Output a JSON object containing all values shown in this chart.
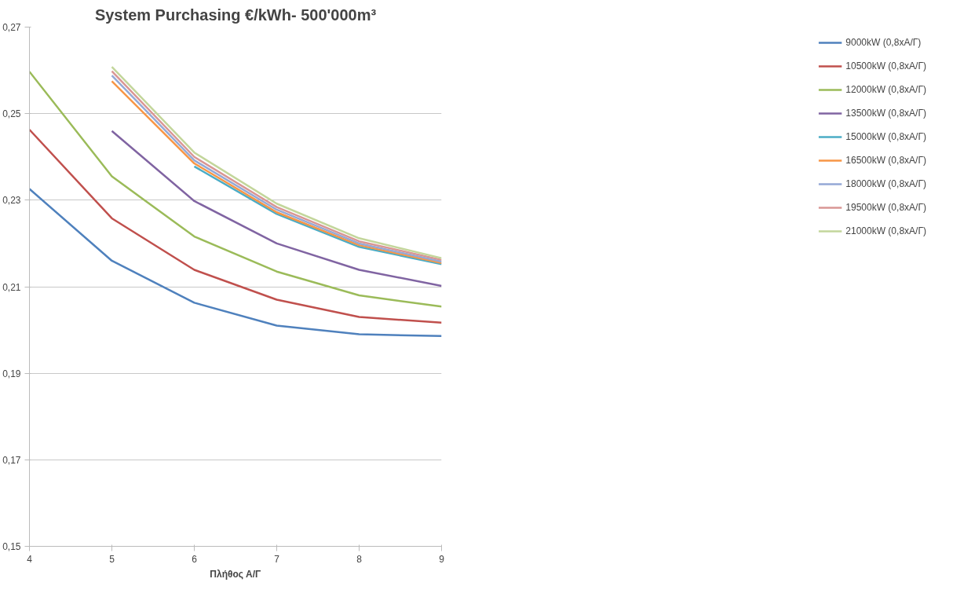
{
  "chart_data": {
    "type": "line",
    "title": "System Purchasing €/kWh- 500'000m³",
    "xlabel": "Πλήθος Α/Γ",
    "x": [
      4,
      5,
      6,
      7,
      8,
      9
    ],
    "series": [
      {
        "name": "9000kW (0,8xA/Γ)",
        "color": "#4f81bd",
        "values": [
          0.2326,
          0.216,
          0.2063,
          0.201,
          0.199,
          0.1986
        ]
      },
      {
        "name": "10500kW (0,8xA/Γ)",
        "color": "#c0504d",
        "values": [
          0.2463,
          0.2258,
          0.2139,
          0.207,
          0.203,
          0.2017
        ]
      },
      {
        "name": "12000kW (0,8xA/Γ)",
        "color": "#9bbb59",
        "values": [
          0.2597,
          0.2355,
          0.2216,
          0.2135,
          0.208,
          0.2054
        ]
      },
      {
        "name": "13500kW (0,8xA/Γ)",
        "color": "#8064a2",
        "values": [
          null,
          0.246,
          0.2298,
          0.22,
          0.2139,
          0.2102
        ]
      },
      {
        "name": "15000kW (0,8xA/Γ)",
        "color": "#4bacc6",
        "values": [
          null,
          null,
          0.2378,
          0.2268,
          0.2192,
          0.2152
        ]
      },
      {
        "name": "16500kW (0,8xA/Γ)",
        "color": "#f79646",
        "values": [
          null,
          0.2575,
          0.2385,
          0.2272,
          0.2196,
          0.2155
        ]
      },
      {
        "name": "18000kW (0,8xA/Γ)",
        "color": "#95a9d6",
        "values": [
          null,
          0.2588,
          0.2392,
          0.2278,
          0.22,
          0.2158
        ]
      },
      {
        "name": "19500kW (0,8xA/Γ)",
        "color": "#d99694",
        "values": [
          null,
          0.2598,
          0.24,
          0.2284,
          0.2205,
          0.2162
        ]
      },
      {
        "name": "21000kW (0,8xA/Γ)",
        "color": "#c3d69b",
        "values": [
          null,
          0.2608,
          0.241,
          0.2292,
          0.2212,
          0.2166
        ]
      }
    ],
    "xlim": [
      4,
      9
    ],
    "xticks": [
      4,
      5,
      6,
      7,
      8,
      9
    ],
    "ylim": [
      0.15,
      0.27
    ],
    "yticks": [
      {
        "value": 0.15,
        "label": "0,15"
      },
      {
        "value": 0.17,
        "label": "0,17"
      },
      {
        "value": 0.19,
        "label": "0,19"
      },
      {
        "value": 0.21,
        "label": "0,21"
      },
      {
        "value": 0.23,
        "label": "0,23"
      },
      {
        "value": 0.25,
        "label": "0,25"
      },
      {
        "value": 0.27,
        "label": "0,27"
      }
    ],
    "grid": "y",
    "legend": "right",
    "marker": "none",
    "line_style": "solid"
  }
}
